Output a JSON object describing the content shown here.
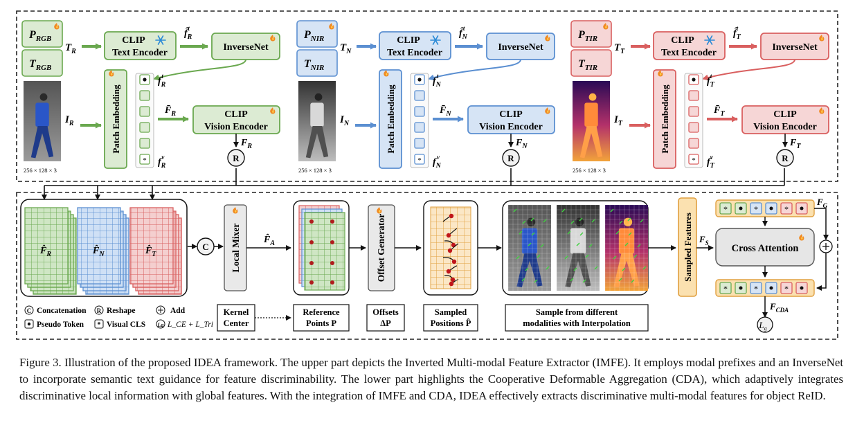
{
  "imfe": {
    "resolution_label": "256 × 128 × 3",
    "clip_text_encoder": [
      "CLIP",
      "Text Encoder"
    ],
    "clip_vision_encoder": [
      "CLIP",
      "Vision Encoder"
    ],
    "inversenet": "InverseNet",
    "patch_embedding": "Patch Embedding",
    "reshape_symbol": "R",
    "branches": [
      {
        "key": "R",
        "prefix_sub": "RGB",
        "label_p": "P",
        "label_t": "T",
        "text_in": "T",
        "image_in": "I",
        "text_feat": "f̂",
        "bar_f": "F̄",
        "vis_cls": "f",
        "out": "F",
        "sub": "R",
        "color": "#6aa84f",
        "fill": "#dcebd3"
      },
      {
        "key": "N",
        "prefix_sub": "NIR",
        "label_p": "P",
        "label_t": "T",
        "text_in": "T",
        "image_in": "I",
        "text_feat": "f̂",
        "bar_f": "F̄",
        "vis_cls": "f",
        "out": "F",
        "sub": "N",
        "color": "#5b8fd1",
        "fill": "#d6e4f5"
      },
      {
        "key": "T",
        "prefix_sub": "TIR",
        "label_p": "P",
        "label_t": "T",
        "text_in": "T",
        "image_in": "I",
        "text_feat": "f̂",
        "bar_f": "F̄",
        "vis_cls": "f",
        "out": "F",
        "sub": "T",
        "color": "#d95f5f",
        "fill": "#f6d6d6"
      }
    ]
  },
  "cda": {
    "concat_symbol": "C",
    "local_mixer": "Local Mixer",
    "f_a": "F̂",
    "f_a_sub": "A",
    "offset_generator": "Offset Generator",
    "sampled_features": "Sampled Features",
    "f_s": "F",
    "f_s_sub": "S",
    "cross_attention": "Cross Attention",
    "f_g": "F",
    "f_g_sub": "G",
    "f_cda": "F",
    "f_cda_sub": "CDA",
    "loss": "L",
    "loss_sub": "g",
    "token_row": [
      "*",
      "•",
      "*",
      "•",
      "*",
      "•"
    ],
    "stack_labels": [
      {
        "main": "F̂",
        "sub": "R"
      },
      {
        "main": "F̂",
        "sub": "N"
      },
      {
        "main": "F̂",
        "sub": "T"
      }
    ],
    "labels": {
      "kernel_center": [
        "Kernel",
        "Center"
      ],
      "reference_points": [
        "Reference",
        "Points P"
      ],
      "offsets": [
        "Offsets",
        "ΔP"
      ],
      "sampled_positions": [
        "Sampled",
        "Positions P̂"
      ],
      "sample_from": [
        "Sample from different",
        "modalities with Interpolation"
      ]
    }
  },
  "legend": {
    "concatenation": "Concatenation",
    "reshape": "Reshape",
    "add": "Add",
    "pseudo_token": "Pseudo Token",
    "visual_cls": "Visual CLS",
    "loss_formula": "L_CE + L_Tri"
  },
  "caption": "Figure 3. Illustration of the proposed IDEA framework. The upper part depicts the Inverted Multi-modal Feature Extractor (IMFE). It employs modal prefixes and an InverseNet to incorporate semantic text guidance for feature discriminability. The lower part highlights the Cooperative Deformable Aggregation (CDA), which adaptively integrates discriminative local information with global features. With the integration of IMFE and CDA, IDEA effectively extracts discriminative multi-modal features for object ReID."
}
